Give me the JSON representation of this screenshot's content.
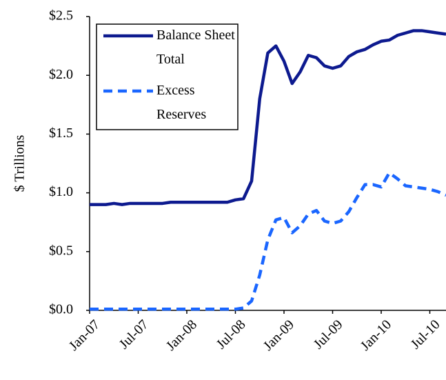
{
  "chart_data": {
    "type": "line",
    "y_label": "$ Trillions",
    "categories": [
      "Jan-07",
      null,
      null,
      null,
      null,
      null,
      "Jul-07",
      null,
      null,
      null,
      null,
      null,
      "Jan-08",
      null,
      null,
      null,
      null,
      null,
      "Jul-08",
      null,
      null,
      null,
      null,
      null,
      "Jan-09",
      null,
      null,
      null,
      null,
      null,
      "Jul-09",
      null,
      null,
      null,
      null,
      null,
      "Jan-10",
      null,
      null,
      null,
      null,
      null,
      "Jul-10",
      null,
      null
    ],
    "series": [
      {
        "name": "Balance Sheet Total",
        "color": "#0d1a8f",
        "dash": "solid",
        "values": [
          0.9,
          0.9,
          0.9,
          0.91,
          0.9,
          0.91,
          0.91,
          0.91,
          0.91,
          0.91,
          0.92,
          0.92,
          0.92,
          0.92,
          0.92,
          0.92,
          0.92,
          0.92,
          0.94,
          0.95,
          1.1,
          1.8,
          2.19,
          2.25,
          2.12,
          1.93,
          2.03,
          2.17,
          2.15,
          2.08,
          2.06,
          2.08,
          2.16,
          2.2,
          2.22,
          2.26,
          2.29,
          2.3,
          2.34,
          2.36,
          2.38,
          2.38,
          2.37,
          2.36,
          2.35
        ]
      },
      {
        "name": "Excess Reserves",
        "color": "#1a66ff",
        "dash": "dashed",
        "values": [
          0.01,
          0.01,
          0.01,
          0.01,
          0.01,
          0.01,
          0.01,
          0.01,
          0.01,
          0.01,
          0.01,
          0.01,
          0.01,
          0.01,
          0.01,
          0.01,
          0.01,
          0.01,
          0.01,
          0.02,
          0.08,
          0.3,
          0.6,
          0.77,
          0.79,
          0.66,
          0.72,
          0.82,
          0.85,
          0.76,
          0.74,
          0.76,
          0.84,
          0.96,
          1.07,
          1.07,
          1.05,
          1.17,
          1.12,
          1.06,
          1.05,
          1.04,
          1.03,
          1.01,
          0.98
        ]
      }
    ],
    "ylim": [
      0,
      2.5
    ],
    "yticks": [
      {
        "value": 0,
        "label": "$0.0"
      },
      {
        "value": 0.5,
        "label": "$0.5"
      },
      {
        "value": 1,
        "label": "$1.0"
      },
      {
        "value": 1.5,
        "label": "$1.5"
      },
      {
        "value": 2,
        "label": "$2.0"
      },
      {
        "value": 2.5,
        "label": "$2.5"
      }
    ],
    "legend": "top-left"
  }
}
